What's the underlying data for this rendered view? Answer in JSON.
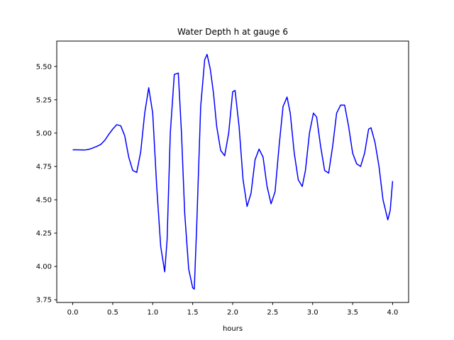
{
  "chart_data": {
    "type": "line",
    "title": "Water Depth h at gauge 6",
    "xlabel": "hours",
    "ylabel": "",
    "xlim": [
      -0.2,
      4.2
    ],
    "ylim": [
      3.73,
      5.69
    ],
    "xticks": [
      "0.0",
      "0.5",
      "1.0",
      "1.5",
      "2.0",
      "2.5",
      "3.0",
      "3.5",
      "4.0"
    ],
    "yticks": [
      "3.75",
      "4.00",
      "4.25",
      "4.50",
      "4.75",
      "5.00",
      "5.25",
      "5.50"
    ],
    "grid": false,
    "line_color": "#0000ff",
    "series": [
      {
        "x": [
          0.0,
          0.05,
          0.1,
          0.15,
          0.2,
          0.25,
          0.3,
          0.35,
          0.4,
          0.45,
          0.5,
          0.55,
          0.6,
          0.65,
          0.7,
          0.75,
          0.8,
          0.85,
          0.9,
          0.95,
          1.0,
          1.05,
          1.1,
          1.15,
          1.18,
          1.22,
          1.27,
          1.32,
          1.36,
          1.4,
          1.45,
          1.5,
          1.52,
          1.55,
          1.6,
          1.65,
          1.68,
          1.72,
          1.76,
          1.8,
          1.85,
          1.9,
          1.95,
          2.0,
          2.03,
          2.08,
          2.13,
          2.18,
          2.23,
          2.28,
          2.33,
          2.38,
          2.43,
          2.48,
          2.53,
          2.58,
          2.63,
          2.68,
          2.72,
          2.77,
          2.82,
          2.87,
          2.91,
          2.96,
          3.01,
          3.05,
          3.1,
          3.15,
          3.2,
          3.25,
          3.3,
          3.35,
          3.4,
          3.45,
          3.5,
          3.55,
          3.6,
          3.65,
          3.7,
          3.73,
          3.78,
          3.83,
          3.88,
          3.94,
          3.97,
          4.0
        ],
        "y": [
          4.875,
          4.875,
          4.874,
          4.873,
          4.878,
          4.888,
          4.9,
          4.915,
          4.945,
          4.99,
          5.03,
          5.063,
          5.055,
          4.98,
          4.82,
          4.72,
          4.705,
          4.86,
          5.15,
          5.34,
          5.15,
          4.6,
          4.15,
          3.96,
          4.2,
          5.0,
          5.44,
          5.45,
          5.0,
          4.4,
          3.98,
          3.84,
          3.83,
          4.3,
          5.2,
          5.55,
          5.59,
          5.48,
          5.3,
          5.05,
          4.87,
          4.83,
          5.0,
          5.31,
          5.32,
          5.05,
          4.65,
          4.45,
          4.55,
          4.8,
          4.88,
          4.82,
          4.6,
          4.47,
          4.56,
          4.9,
          5.2,
          5.27,
          5.15,
          4.85,
          4.65,
          4.6,
          4.72,
          5.0,
          5.15,
          5.12,
          4.9,
          4.72,
          4.7,
          4.9,
          5.15,
          5.21,
          5.21,
          5.05,
          4.85,
          4.77,
          4.75,
          4.85,
          5.03,
          5.04,
          4.93,
          4.75,
          4.5,
          4.35,
          4.42,
          4.64
        ]
      }
    ]
  }
}
